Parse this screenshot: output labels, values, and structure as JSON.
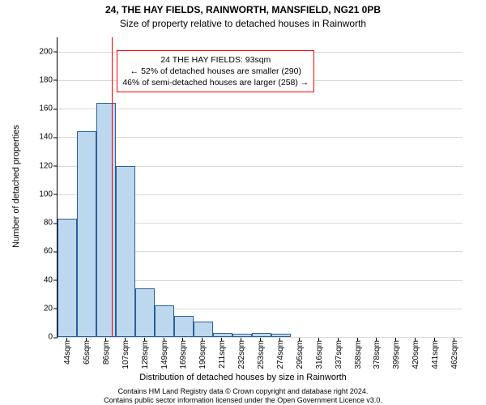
{
  "title": "24, THE HAY FIELDS, RAINWORTH, MANSFIELD, NG21 0PB",
  "subtitle": "Size of property relative to detached houses in Rainworth",
  "chart": {
    "type": "histogram",
    "ylabel": "Number of detached properties",
    "xlabel": "Distribution of detached houses by size in Rainworth",
    "ylim": [
      0,
      210
    ],
    "xlim": [
      34,
      472
    ],
    "yticks": [
      0,
      20,
      40,
      60,
      80,
      100,
      120,
      140,
      160,
      180,
      200
    ],
    "xticks": [
      44,
      65,
      86,
      107,
      128,
      149,
      169,
      190,
      211,
      232,
      253,
      274,
      295,
      316,
      337,
      358,
      378,
      399,
      420,
      441,
      462
    ],
    "xtick_suffix": "sqm",
    "grid_color": "#d9d9d9",
    "background_color": "#ffffff",
    "bar_color": "#bdd7ee",
    "bar_border": "#2a6099",
    "bar_border_width": 1,
    "bars": [
      {
        "x0": 34,
        "x1": 55,
        "count": 83
      },
      {
        "x0": 55,
        "x1": 76,
        "count": 144
      },
      {
        "x0": 76,
        "x1": 97,
        "count": 164
      },
      {
        "x0": 97,
        "x1": 118,
        "count": 120
      },
      {
        "x0": 118,
        "x1": 139,
        "count": 34
      },
      {
        "x0": 139,
        "x1": 160,
        "count": 22
      },
      {
        "x0": 160,
        "x1": 181,
        "count": 15
      },
      {
        "x0": 181,
        "x1": 202,
        "count": 11
      },
      {
        "x0": 202,
        "x1": 223,
        "count": 3
      },
      {
        "x0": 223,
        "x1": 244,
        "count": 2
      },
      {
        "x0": 244,
        "x1": 265,
        "count": 3
      },
      {
        "x0": 265,
        "x1": 286,
        "count": 2
      }
    ],
    "reference_line": {
      "x": 93,
      "color": "#ff0000",
      "width": 1
    },
    "callout": {
      "lines": [
        "24 THE HAY FIELDS: 93sqm",
        "← 52% of detached houses are smaller (290)",
        "46% of semi-detached houses are larger (258) →"
      ],
      "border_color": "#ff0000",
      "border_width": 1,
      "x_anchor": 93,
      "y_value": 200
    },
    "label_fontsize": 11,
    "tick_fontsize": 10,
    "title_fontsize": 12
  },
  "attribution": {
    "line1": "Contains HM Land Registry data © Crown copyright and database right 2024.",
    "line2": "Contains public sector information licensed under the Open Government Licence v3.0."
  }
}
